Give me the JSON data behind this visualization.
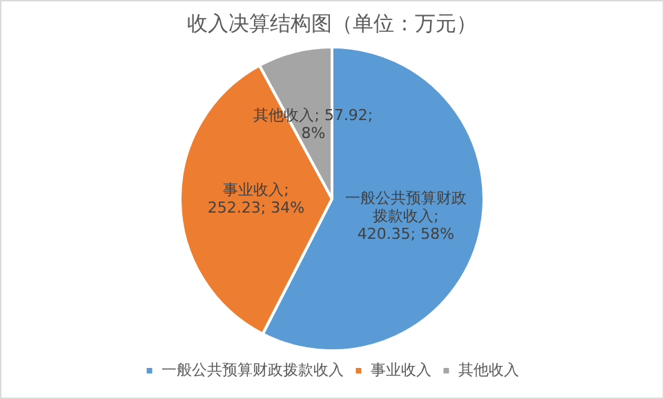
{
  "chart_data": {
    "type": "pie",
    "title": "收入决算结构图（单位：万元）",
    "categories": [
      "一般公共预算财政拨款收入",
      "事业收入",
      "其他收入"
    ],
    "values": [
      420.35,
      252.23,
      57.92
    ],
    "colors": [
      "#5b9bd5",
      "#ed7d31",
      "#a5a5a5"
    ],
    "value_labels": [
      "一般公共预算财政拨款收入; 420.35; 58%",
      "事业收入; 252.23; 34%",
      "其他收入; 57.92; 8%"
    ],
    "legend": "bottom"
  }
}
